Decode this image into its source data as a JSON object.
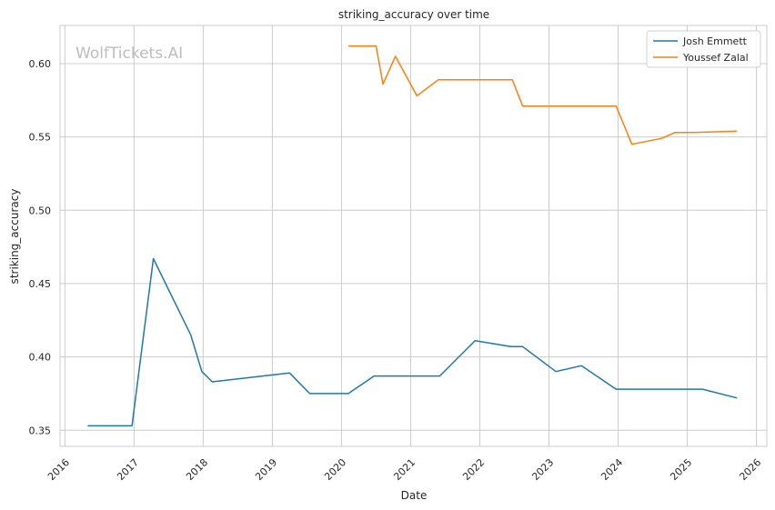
{
  "chart_data": {
    "type": "line",
    "title": "striking_accuracy over time",
    "xlabel": "Date",
    "ylabel": "striking_accuracy",
    "watermark": "WolfTickets.AI",
    "xlim": [
      2015.93,
      2026.15
    ],
    "ylim": [
      0.339,
      0.626
    ],
    "x_ticks": [
      2016,
      2017,
      2018,
      2019,
      2020,
      2021,
      2022,
      2023,
      2024,
      2025,
      2026
    ],
    "x_tick_labels": [
      "2016",
      "2017",
      "2018",
      "2019",
      "2020",
      "2021",
      "2022",
      "2023",
      "2024",
      "2025",
      "2026"
    ],
    "y_ticks": [
      0.35,
      0.4,
      0.45,
      0.5,
      0.55,
      0.6
    ],
    "y_tick_labels": [
      "0.35",
      "0.40",
      "0.45",
      "0.50",
      "0.55",
      "0.60"
    ],
    "grid": true,
    "legend_position": "top-right",
    "series": [
      {
        "name": "Josh Emmett",
        "color": "#1f77b4",
        "x": [
          2016.33,
          2016.97,
          2017.28,
          2017.82,
          2017.98,
          2018.13,
          2019.25,
          2019.54,
          2020.1,
          2020.47,
          2021.0,
          2021.42,
          2021.93,
          2022.45,
          2022.62,
          2023.1,
          2023.47,
          2023.97,
          2024.5,
          2025.1,
          2025.22,
          2025.72
        ],
        "values": [
          0.353,
          0.353,
          0.467,
          0.415,
          0.39,
          0.383,
          0.389,
          0.375,
          0.375,
          0.387,
          0.387,
          0.387,
          0.411,
          0.407,
          0.407,
          0.39,
          0.394,
          0.378,
          0.378,
          0.378,
          0.378,
          0.372
        ]
      },
      {
        "name": "Youssef Zalal",
        "color": "#ff7f0e",
        "x": [
          2020.1,
          2020.5,
          2020.6,
          2020.78,
          2021.09,
          2021.4,
          2021.93,
          2022.47,
          2022.62,
          2023.97,
          2024.2,
          2024.63,
          2024.82,
          2025.08,
          2025.72
        ],
        "values": [
          0.612,
          0.612,
          0.586,
          0.605,
          0.578,
          0.589,
          0.589,
          0.589,
          0.571,
          0.571,
          0.545,
          0.549,
          0.553,
          0.553,
          0.554
        ]
      }
    ]
  }
}
